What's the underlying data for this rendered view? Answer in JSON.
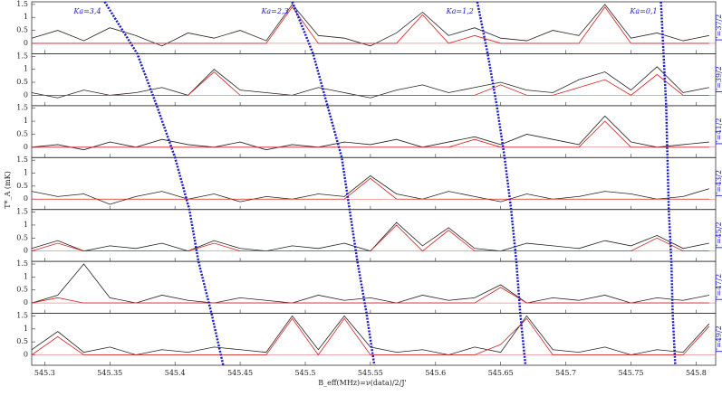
{
  "chart_data": {
    "type": "line",
    "xlabel": "B_eff(MHz)=ν(data)/2/J'",
    "ylabel": "T*_A (mK)",
    "xlim": [
      545.29,
      545.815
    ],
    "xticks": [
      545.3,
      545.35,
      545.4,
      545.45,
      545.5,
      545.55,
      545.6,
      545.65,
      545.7,
      545.75,
      545.8
    ],
    "ylim": [
      -0.4,
      1.6
    ],
    "yticks": [
      0,
      0.5,
      1,
      1.5
    ],
    "x": [
      545.29,
      545.31,
      545.33,
      545.35,
      545.37,
      545.39,
      545.41,
      545.43,
      545.45,
      545.47,
      545.49,
      545.51,
      545.53,
      545.55,
      545.57,
      545.59,
      545.61,
      545.63,
      545.65,
      545.67,
      545.69,
      545.71,
      545.73,
      545.75,
      545.77,
      545.79,
      545.81
    ],
    "panels": [
      {
        "label": "J'=37/2",
        "series": [
          {
            "color": "#222222",
            "values": [
              0.2,
              0.5,
              0.1,
              0.6,
              0.3,
              -0.1,
              0.4,
              0.2,
              0.5,
              0.1,
              1.5,
              0.3,
              0.2,
              -0.1,
              0.4,
              1.2,
              0.3,
              0.6,
              0.2,
              0.1,
              0.5,
              0.3,
              1.5,
              0.2,
              0.4,
              0.1,
              0.3
            ]
          },
          {
            "color": "#d62020",
            "values": [
              0,
              0,
              0,
              0,
              0,
              0,
              0,
              0,
              0,
              0,
              1.4,
              0,
              0,
              0,
              0,
              1.1,
              0,
              0.3,
              0,
              0,
              0,
              0,
              1.4,
              0,
              0,
              0,
              0
            ]
          }
        ]
      },
      {
        "label": "J'=39/2",
        "series": [
          {
            "color": "#222222",
            "values": [
              0.1,
              -0.1,
              0.2,
              0,
              0.1,
              0.3,
              0,
              1,
              0.2,
              0.1,
              0,
              0.3,
              0.1,
              -0.1,
              0.2,
              0.4,
              0.1,
              0.3,
              0.5,
              0.2,
              0.1,
              0.6,
              0.9,
              0.2,
              1.1,
              0.1,
              0.3
            ]
          },
          {
            "color": "#d62020",
            "values": [
              0,
              0,
              0,
              0,
              0,
              0,
              0,
              0.9,
              0,
              0,
              0,
              0,
              0,
              0,
              0,
              0,
              0,
              0,
              0.4,
              0,
              0,
              0.3,
              0.6,
              0,
              0.8,
              0,
              0
            ]
          }
        ]
      },
      {
        "label": "J'=41/2",
        "series": [
          {
            "color": "#222222",
            "values": [
              0,
              0.1,
              -0.1,
              0.2,
              0,
              0.3,
              0.1,
              0,
              0.2,
              -0.1,
              0.1,
              0,
              0.2,
              0.1,
              0.3,
              0,
              0.2,
              0.4,
              0.1,
              0.5,
              0.3,
              0.1,
              1.2,
              0.2,
              0,
              0.1,
              0.2
            ]
          },
          {
            "color": "#d62020",
            "values": [
              0,
              0,
              0,
              0,
              0,
              0,
              0,
              0,
              0,
              0,
              0,
              0,
              0,
              0,
              0,
              0,
              0,
              0.3,
              0,
              0,
              0,
              0,
              1,
              0,
              0,
              0,
              0
            ]
          }
        ]
      },
      {
        "label": "J'=43/2",
        "series": [
          {
            "color": "#222222",
            "values": [
              0.3,
              0.1,
              0.2,
              -0.2,
              0.1,
              0.3,
              0,
              0.2,
              -0.1,
              0.1,
              0,
              0.2,
              0.1,
              0.9,
              0.2,
              0,
              0.3,
              0.1,
              -0.1,
              0.2,
              0,
              0.1,
              0.3,
              0.2,
              0,
              0.1,
              0.4
            ]
          },
          {
            "color": "#d62020",
            "values": [
              0,
              0,
              0,
              0,
              0,
              0,
              0,
              0,
              0,
              0,
              0,
              0,
              0,
              0.8,
              0,
              0,
              0,
              0,
              0,
              0,
              0,
              0,
              0,
              0,
              0,
              0,
              0
            ]
          }
        ]
      },
      {
        "label": "J'=45/2",
        "series": [
          {
            "color": "#222222",
            "values": [
              0.1,
              0.4,
              0,
              0.2,
              0.1,
              0.3,
              0,
              0.4,
              0.1,
              0,
              0.2,
              0.1,
              0.3,
              0,
              1.1,
              0.2,
              0.9,
              0.1,
              0,
              0.3,
              0.2,
              0.1,
              0.4,
              0.2,
              0.6,
              0.1,
              0.3
            ]
          },
          {
            "color": "#d62020",
            "values": [
              0,
              0.3,
              0,
              0,
              0,
              0,
              0,
              0.3,
              0,
              0,
              0,
              0,
              0,
              0,
              1,
              0,
              0.8,
              0,
              0,
              0,
              0,
              0,
              0,
              0,
              0.5,
              0,
              0
            ]
          }
        ]
      },
      {
        "label": "J'=47/2",
        "series": [
          {
            "color": "#222222",
            "values": [
              0,
              0.3,
              1.5,
              0.2,
              0,
              0.3,
              0.1,
              0,
              0.2,
              0.1,
              0,
              0.3,
              0.1,
              0.2,
              0,
              0.3,
              0.1,
              0.2,
              0.7,
              0,
              0.2,
              0.1,
              0.3,
              0,
              0.2,
              0.1,
              0.3
            ]
          },
          {
            "color": "#d62020",
            "values": [
              0,
              0.2,
              0,
              0,
              0,
              0,
              0,
              0,
              0,
              0,
              0,
              0,
              0,
              0,
              0,
              0,
              0,
              0,
              0.6,
              0,
              0,
              0,
              0,
              0,
              0,
              0,
              0
            ]
          }
        ]
      },
      {
        "label": "J'=49/2",
        "series": [
          {
            "color": "#222222",
            "values": [
              0.2,
              0.9,
              0.1,
              0.3,
              0,
              0.2,
              0.1,
              0.3,
              0.2,
              0.1,
              1.5,
              0.2,
              1.5,
              0.3,
              0.1,
              0.2,
              0,
              0.3,
              0.1,
              1.5,
              0.2,
              0.1,
              0.3,
              0,
              0.2,
              0.1,
              1.2
            ]
          },
          {
            "color": "#d62020",
            "values": [
              0,
              0.7,
              0,
              0,
              0,
              0,
              0,
              0,
              0,
              0,
              1.4,
              0,
              1.4,
              0,
              0,
              0,
              0,
              0,
              0.4,
              1.4,
              0,
              0,
              0,
              0,
              0,
              0,
              1.1
            ]
          }
        ]
      }
    ],
    "guide_color": "#1a1ad6",
    "guides": [
      {
        "label": "Ka=3,4",
        "x": [
          545.346,
          545.371,
          545.386,
          545.4,
          545.411,
          545.418,
          545.428,
          545.437
        ]
      },
      {
        "label": "Ka=2,3",
        "x": [
          545.49,
          545.506,
          545.517,
          545.528,
          545.534,
          545.54,
          545.547,
          545.553
        ]
      },
      {
        "label": "Ka=1,2",
        "x": [
          545.632,
          545.64,
          545.647,
          545.653,
          545.658,
          545.662,
          545.665,
          545.669
        ]
      },
      {
        "label": "Ka=0,1",
        "x": [
          545.773,
          545.775,
          545.777,
          545.778,
          545.779,
          545.781,
          545.782,
          545.784
        ]
      }
    ]
  }
}
